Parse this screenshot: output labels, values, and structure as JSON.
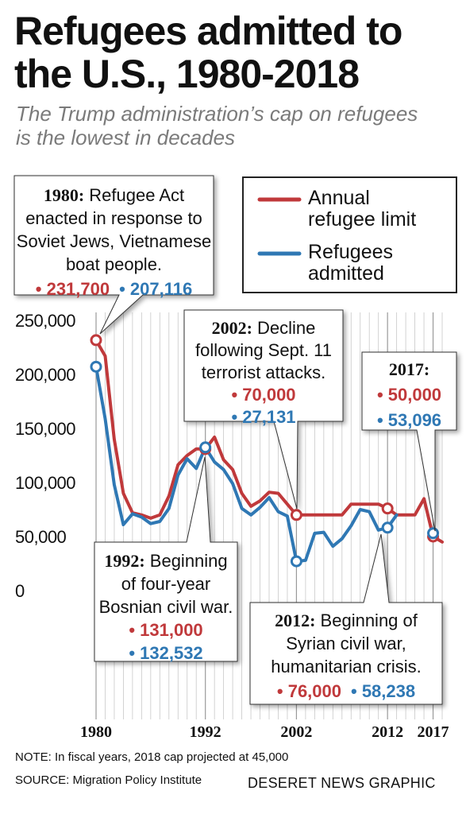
{
  "title_lines": [
    "Refugees admitted to",
    "the U.S., 1980-2018"
  ],
  "subtitle_lines": [
    "The Trump administration’s cap on refugees",
    "is the lowest in decades"
  ],
  "note": "NOTE: In fiscal years, 2018 cap projected at 45,000",
  "source": "SOURCE: Migration Policy Institute",
  "credit": "DESERET NEWS GRAPHIC",
  "colors": {
    "limit": "#c0393b",
    "admitted": "#2f78b4",
    "grid": "#c8c8c8",
    "text": "#111111"
  },
  "chart_data": {
    "type": "line",
    "title": "Refugees admitted to the U.S., 1980-2018",
    "xlim": [
      1980,
      2018
    ],
    "ylim": [
      0,
      250000
    ],
    "y_ticks": [
      0,
      50000,
      100000,
      150000,
      200000,
      250000
    ],
    "y_tick_labels": [
      "0",
      "50,000",
      "100,000",
      "150,000",
      "200,000",
      "250,000"
    ],
    "x_ticks": [
      1980,
      1992,
      2002,
      2012,
      2017
    ],
    "x_tick_labels": [
      "1980",
      "1992",
      "2002",
      "2012",
      "2017"
    ],
    "grid": "vertical",
    "legend_position": "top-right",
    "series": [
      {
        "name": "Annual refugee limit",
        "color": "#c0393b",
        "points": [
          [
            1980,
            231700
          ],
          [
            1981,
            217000
          ],
          [
            1982,
            140000
          ],
          [
            1983,
            90000
          ],
          [
            1984,
            72000
          ],
          [
            1985,
            70000
          ],
          [
            1986,
            67000
          ],
          [
            1987,
            70000
          ],
          [
            1988,
            87500
          ],
          [
            1989,
            116500
          ],
          [
            1990,
            125000
          ],
          [
            1991,
            131000
          ],
          [
            1992,
            131000
          ],
          [
            1993,
            142000
          ],
          [
            1994,
            121000
          ],
          [
            1995,
            112000
          ],
          [
            1996,
            90000
          ],
          [
            1997,
            78000
          ],
          [
            1998,
            83000
          ],
          [
            1999,
            91000
          ],
          [
            2000,
            90000
          ],
          [
            2001,
            80000
          ],
          [
            2002,
            70000
          ],
          [
            2003,
            70000
          ],
          [
            2004,
            70000
          ],
          [
            2005,
            70000
          ],
          [
            2006,
            70000
          ],
          [
            2007,
            70000
          ],
          [
            2008,
            80000
          ],
          [
            2009,
            80000
          ],
          [
            2010,
            80000
          ],
          [
            2011,
            80000
          ],
          [
            2012,
            76000
          ],
          [
            2013,
            70000
          ],
          [
            2014,
            70000
          ],
          [
            2015,
            70000
          ],
          [
            2016,
            85000
          ],
          [
            2017,
            50000
          ],
          [
            2018,
            45000
          ]
        ]
      },
      {
        "name": "Refugees admitted",
        "color": "#2f78b4",
        "points": [
          [
            1980,
            207116
          ],
          [
            1981,
            159000
          ],
          [
            1982,
            98000
          ],
          [
            1983,
            61000
          ],
          [
            1984,
            71000
          ],
          [
            1985,
            68000
          ],
          [
            1986,
            62000
          ],
          [
            1987,
            64000
          ],
          [
            1988,
            76000
          ],
          [
            1989,
            107000
          ],
          [
            1990,
            122000
          ],
          [
            1991,
            113000
          ],
          [
            1992,
            132532
          ],
          [
            1993,
            119000
          ],
          [
            1994,
            112000
          ],
          [
            1995,
            99000
          ],
          [
            1996,
            76000
          ],
          [
            1997,
            70000
          ],
          [
            1998,
            77000
          ],
          [
            1999,
            86000
          ],
          [
            2000,
            73000
          ],
          [
            2001,
            69000
          ],
          [
            2002,
            27131
          ],
          [
            2003,
            28000
          ],
          [
            2004,
            53000
          ],
          [
            2005,
            54000
          ],
          [
            2006,
            41000
          ],
          [
            2007,
            48000
          ],
          [
            2008,
            60000
          ],
          [
            2009,
            75000
          ],
          [
            2010,
            73000
          ],
          [
            2011,
            56000
          ],
          [
            2012,
            58238
          ],
          [
            2013,
            70000
          ]
        ]
      }
    ],
    "legend": {
      "limit_lines": [
        "Annual",
        "refugee limit"
      ],
      "admitted_lines": [
        "Refugees",
        "admitted"
      ]
    },
    "annotations": [
      {
        "id": "1980",
        "year_label": "1980:",
        "lines": [
          "Refugee Act",
          "enacted in response to",
          "Soviet Jews, Vietnamese",
          "boat people."
        ],
        "limit_value": "231,700",
        "admitted_value": "207,116",
        "x": 1980,
        "limit": 231700,
        "admitted": 207116
      },
      {
        "id": "2002",
        "year_label": "2002:",
        "lines": [
          "Decline",
          "following Sept. 11",
          "terrorist attacks."
        ],
        "limit_value": "70,000",
        "admitted_value": "27,131",
        "x": 2002,
        "limit": 70000,
        "admitted": 27131
      },
      {
        "id": "2017",
        "year_label": "2017:",
        "lines": [],
        "limit_value": "50,000",
        "admitted_value": "53,096",
        "x": 2017,
        "limit": 50000,
        "admitted": 53096
      },
      {
        "id": "1992",
        "year_label": "1992:",
        "lines": [
          "Beginning",
          "of four-year",
          "Bosnian civil war."
        ],
        "limit_value": "131,000",
        "admitted_value": "132,532",
        "x": 1992,
        "limit": 131000,
        "admitted": 132532
      },
      {
        "id": "2012",
        "year_label": "2012:",
        "lines": [
          "Beginning of",
          "Syrian civil war,",
          "humanitarian crisis."
        ],
        "limit_value": "76,000",
        "admitted_value": "58,238",
        "x": 2012,
        "limit": 76000,
        "admitted": 58238
      }
    ]
  }
}
